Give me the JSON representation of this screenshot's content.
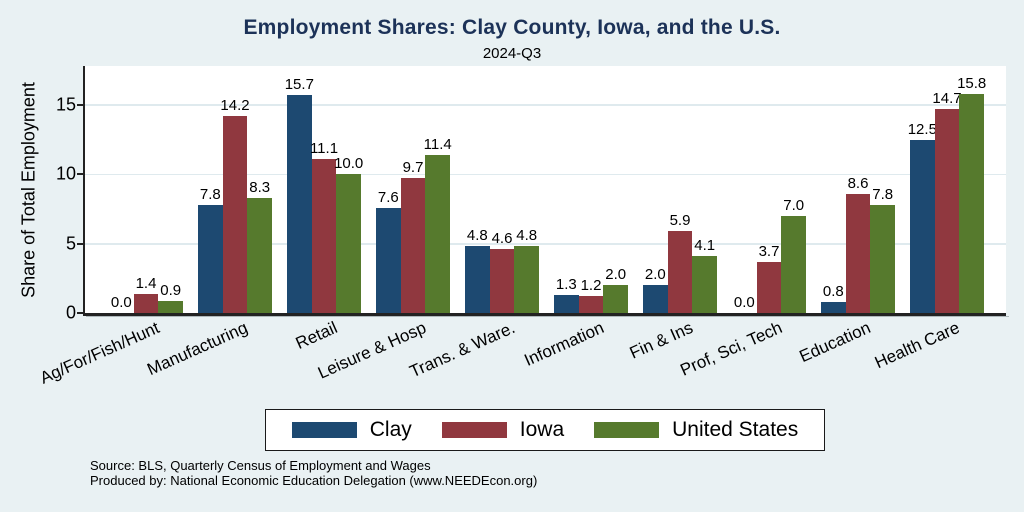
{
  "chart_data": {
    "type": "bar",
    "title": "Employment Shares: Clay County, Iowa, and the U.S.",
    "subtitle": "2024-Q3",
    "ylabel": "Share of Total Employment",
    "ylim": [
      0,
      17.8
    ],
    "yticks": [
      0,
      5,
      10,
      15
    ],
    "grid": true,
    "legend_position": "bottom-center",
    "bar_value_labels": true,
    "value_label_format": "0.0",
    "categories": [
      "Ag/For/Fish/Hunt",
      "Manufacturing",
      "Retail",
      "Leisure & Hosp",
      "Trans. & Ware.",
      "Information",
      "Fin & Ins",
      "Prof, Sci, Tech",
      "Education",
      "Health Care"
    ],
    "series": [
      {
        "name": "Clay",
        "color": "#1d4971",
        "values": [
          0.0,
          7.8,
          15.7,
          7.6,
          4.8,
          1.3,
          2.0,
          0.0,
          0.8,
          12.5
        ]
      },
      {
        "name": "Iowa",
        "color": "#90383f",
        "values": [
          1.4,
          14.2,
          11.1,
          9.7,
          4.6,
          1.2,
          5.9,
          3.7,
          8.6,
          14.7
        ]
      },
      {
        "name": "United States",
        "color": "#567a2d",
        "values": [
          0.9,
          8.3,
          10.0,
          11.4,
          4.8,
          2.0,
          4.1,
          7.0,
          7.8,
          15.8
        ]
      }
    ],
    "source": "Source: BLS, Quarterly Census of Employment and Wages",
    "producer": "Produced by: National Economic Education Delegation (www.NEEDEcon.org)"
  },
  "colors": {
    "background": "#e9f1f3",
    "plot_background": "#ffffff",
    "gridline": "#dfeaee",
    "axis": "#222222",
    "title": "#1c3258",
    "text": "#000000",
    "legend_border": "#1a1a1a"
  }
}
